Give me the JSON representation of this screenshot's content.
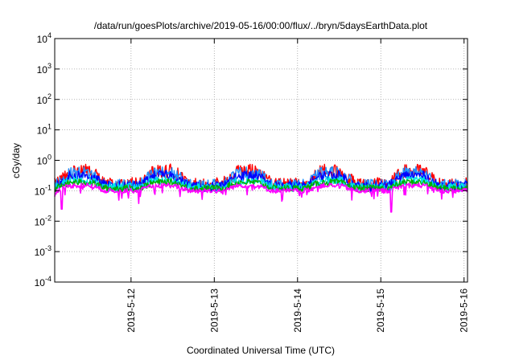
{
  "chart_data": {
    "type": "line",
    "title": "/data/run/goesPlots/archive/2019-05-16/00:00/flux/../bryn/5daysEarthData.plot",
    "xlabel": "Coordinated Universal Time (UTC)",
    "ylabel": "cGy/day",
    "y_scale": "log",
    "ylim": [
      0.0001,
      10000
    ],
    "xlim": [
      "2019-05-11T02:00",
      "2019-05-16T01:00"
    ],
    "y_ticks": [
      {
        "value": 0.0001,
        "base": "10",
        "exp": "-4"
      },
      {
        "value": 0.001,
        "base": "10",
        "exp": "-3"
      },
      {
        "value": 0.01,
        "base": "10",
        "exp": "-2"
      },
      {
        "value": 0.1,
        "base": "10",
        "exp": "-1"
      },
      {
        "value": 1,
        "base": "10",
        "exp": "0"
      },
      {
        "value": 10,
        "base": "10",
        "exp": "1"
      },
      {
        "value": 100,
        "base": "10",
        "exp": "2"
      },
      {
        "value": 1000,
        "base": "10",
        "exp": "3"
      },
      {
        "value": 10000,
        "base": "10",
        "exp": "4"
      }
    ],
    "x_ticks": [
      {
        "value": "2019-05-12T00:00",
        "label": "2019-5-12"
      },
      {
        "value": "2019-05-13T00:00",
        "label": "2019-5-13"
      },
      {
        "value": "2019-05-14T00:00",
        "label": "2019-5-14"
      },
      {
        "value": "2019-05-15T00:00",
        "label": "2019-5-15"
      },
      {
        "value": "2019-05-16T00:00",
        "label": "2019-5-16"
      }
    ],
    "grid": true,
    "legend": "none",
    "diurnal_peaks_utc": [
      "2019-05-11T09:00",
      "2019-05-12T09:00",
      "2019-05-13T10:00",
      "2019-05-14T08:00",
      "2019-05-15T11:00"
    ],
    "dropouts": [
      {
        "time": "2019-05-11T04:00",
        "value": 0.025
      },
      {
        "time": "2019-05-15T03:00",
        "value": 0.02
      }
    ],
    "series": [
      {
        "color": "#ff0000",
        "baseline": 0.16,
        "peak": 0.45
      },
      {
        "color": "#1e90ff",
        "baseline": 0.15,
        "peak": 0.4
      },
      {
        "color": "#0000ff",
        "baseline": 0.14,
        "peak": 0.32
      },
      {
        "color": "#00e5e5",
        "baseline": 0.13,
        "peak": 0.22
      },
      {
        "color": "#00b000",
        "baseline": 0.12,
        "peak": 0.19
      },
      {
        "color": "#ff00ff",
        "baseline": 0.1,
        "peak": 0.15
      }
    ]
  }
}
